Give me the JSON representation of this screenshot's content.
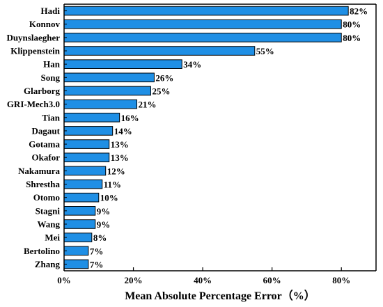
{
  "chart_data": {
    "type": "bar",
    "orientation": "horizontal",
    "categories": [
      "Hadi",
      "Konnov",
      "Duynslaegher",
      "Klippenstein",
      "Han",
      "Song",
      "Glarborg",
      "GRI-Mech3.0",
      "Tian",
      "Dagaut",
      "Gotama",
      "Okafor",
      "Nakamura",
      "Shrestha",
      "Otomo",
      "Stagni",
      "Wang",
      "Mei",
      "Bertolino",
      "Zhang"
    ],
    "values": [
      82,
      80,
      80,
      55,
      34,
      26,
      25,
      21,
      16,
      14,
      13,
      13,
      12,
      11,
      10,
      9,
      9,
      8,
      7,
      7
    ],
    "value_labels": [
      "82%",
      "80%",
      "80%",
      "55%",
      "34%",
      "26%",
      "25%",
      "21%",
      "16%",
      "14%",
      "13%",
      "13%",
      "12%",
      "11%",
      "10%",
      "9%",
      "9%",
      "8%",
      "7%",
      "7%"
    ],
    "xlabel": "Mean Absolute Percentage Error（%）",
    "ylabel": "",
    "title": "",
    "xlim": [
      0,
      90
    ],
    "x_ticks": [
      0,
      20,
      40,
      60,
      80
    ],
    "x_tick_labels": [
      "0%",
      "20%",
      "40%",
      "60%",
      "80%"
    ],
    "grid": false,
    "bar_color": "#1f8fe5",
    "bar_edge_color": "#000000"
  }
}
